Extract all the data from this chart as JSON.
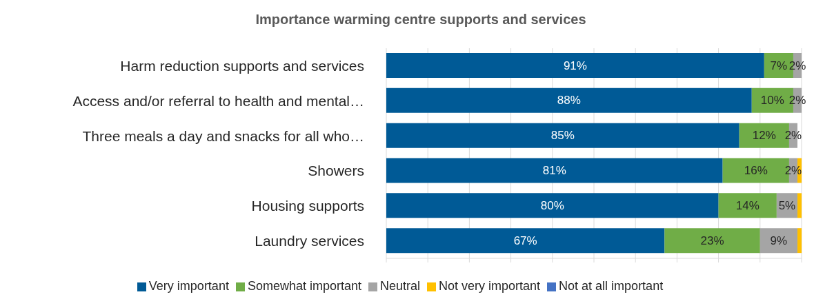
{
  "chart_data": {
    "type": "bar",
    "orientation": "horizontal",
    "stacked": true,
    "title": "Importance warming centre supports and services",
    "categories": [
      "Harm reduction supports and services",
      "Access and/or referral to health and mental…",
      "Three meals a day and snacks for all who…",
      "Showers",
      "Housing supports",
      "Laundry services"
    ],
    "series": [
      {
        "name": "Very important",
        "color": "#005a96",
        "values": [
          91,
          88,
          85,
          81,
          80,
          67
        ],
        "value_labels": [
          "91%",
          "88%",
          "85%",
          "81%",
          "80%",
          "67%"
        ]
      },
      {
        "name": "Somewhat important",
        "color": "#70ad47",
        "values": [
          7,
          10,
          12,
          16,
          14,
          23
        ],
        "value_labels": [
          "7%",
          "10%",
          "12%",
          "16%",
          "14%",
          "23%"
        ]
      },
      {
        "name": "Neutral",
        "color": "#a5a5a5",
        "values": [
          2,
          2,
          2,
          2,
          5,
          9
        ],
        "value_labels": [
          "2%",
          "2%",
          "2%",
          "2%",
          "5%",
          "9%"
        ]
      },
      {
        "name": "Not very important",
        "color": "#ffc000",
        "values": [
          0,
          0,
          0,
          1,
          1,
          1
        ],
        "value_labels": [
          null,
          null,
          null,
          null,
          null,
          null
        ]
      },
      {
        "name": "Not at all important",
        "color": "#4472c4",
        "values": [
          0,
          0,
          0,
          0,
          0,
          0
        ],
        "value_labels": [
          null,
          null,
          null,
          null,
          null,
          null
        ]
      }
    ],
    "xlim": [
      0,
      100
    ],
    "xticks": [
      {
        "value": 0,
        "label": null
      },
      {
        "value": 10,
        "label": null
      },
      {
        "value": 20,
        "label": null
      },
      {
        "value": 30,
        "label": null
      },
      {
        "value": 40,
        "label": null
      },
      {
        "value": 50,
        "label": null
      },
      {
        "value": 60,
        "label": null
      },
      {
        "value": 70,
        "label": null
      },
      {
        "value": 80,
        "label": null
      },
      {
        "value": 90,
        "label": null
      },
      {
        "value": 100,
        "label": null
      }
    ],
    "tick_labels": "y",
    "grid": "x",
    "legend": "bottom"
  }
}
